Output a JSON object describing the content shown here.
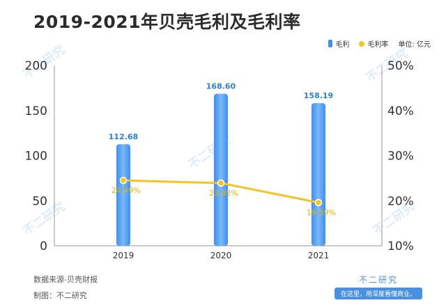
{
  "page_title": "2019-2021年贝壳毛利及毛利率",
  "legend": {
    "bar_label": "毛利",
    "line_label": "毛利率",
    "unit": "单位: 亿元"
  },
  "footer": {
    "source": "数据来源-贝壳财报",
    "maker": "制图：不二研究"
  },
  "brand": {
    "name": "不二研究",
    "slogan": "在这里，用深度看懂商业。"
  },
  "watermark": "不二研究",
  "colors": {
    "bar": "#3c8ff2",
    "bar_light": "#7ab8f7",
    "line": "#f2c522",
    "bar_label": "#2d7fcf",
    "line_label": "#e3b400",
    "axis": "#999999"
  },
  "chart_data": {
    "type": "bar",
    "categories": [
      "2019",
      "2020",
      "2021"
    ],
    "series": [
      {
        "name": "毛利",
        "type": "bar",
        "axis": "left",
        "values": [
          112.68,
          168.6,
          158.19
        ],
        "labels": [
          "112.68",
          "168.60",
          "158.19"
        ]
      },
      {
        "name": "毛利率",
        "type": "line",
        "axis": "right",
        "values": [
          24.49,
          23.92,
          19.59
        ],
        "labels": [
          "24.49%",
          "23.92%",
          "19.59%"
        ]
      }
    ],
    "y_left": {
      "range": [
        0,
        200
      ],
      "ticks": [
        "0",
        "50",
        "100",
        "150",
        "200"
      ]
    },
    "y_right": {
      "range": [
        10,
        50
      ],
      "ticks": [
        "10%",
        "20%",
        "30%",
        "40%",
        "50%"
      ]
    },
    "grid": false,
    "legend_position": "top-right"
  }
}
